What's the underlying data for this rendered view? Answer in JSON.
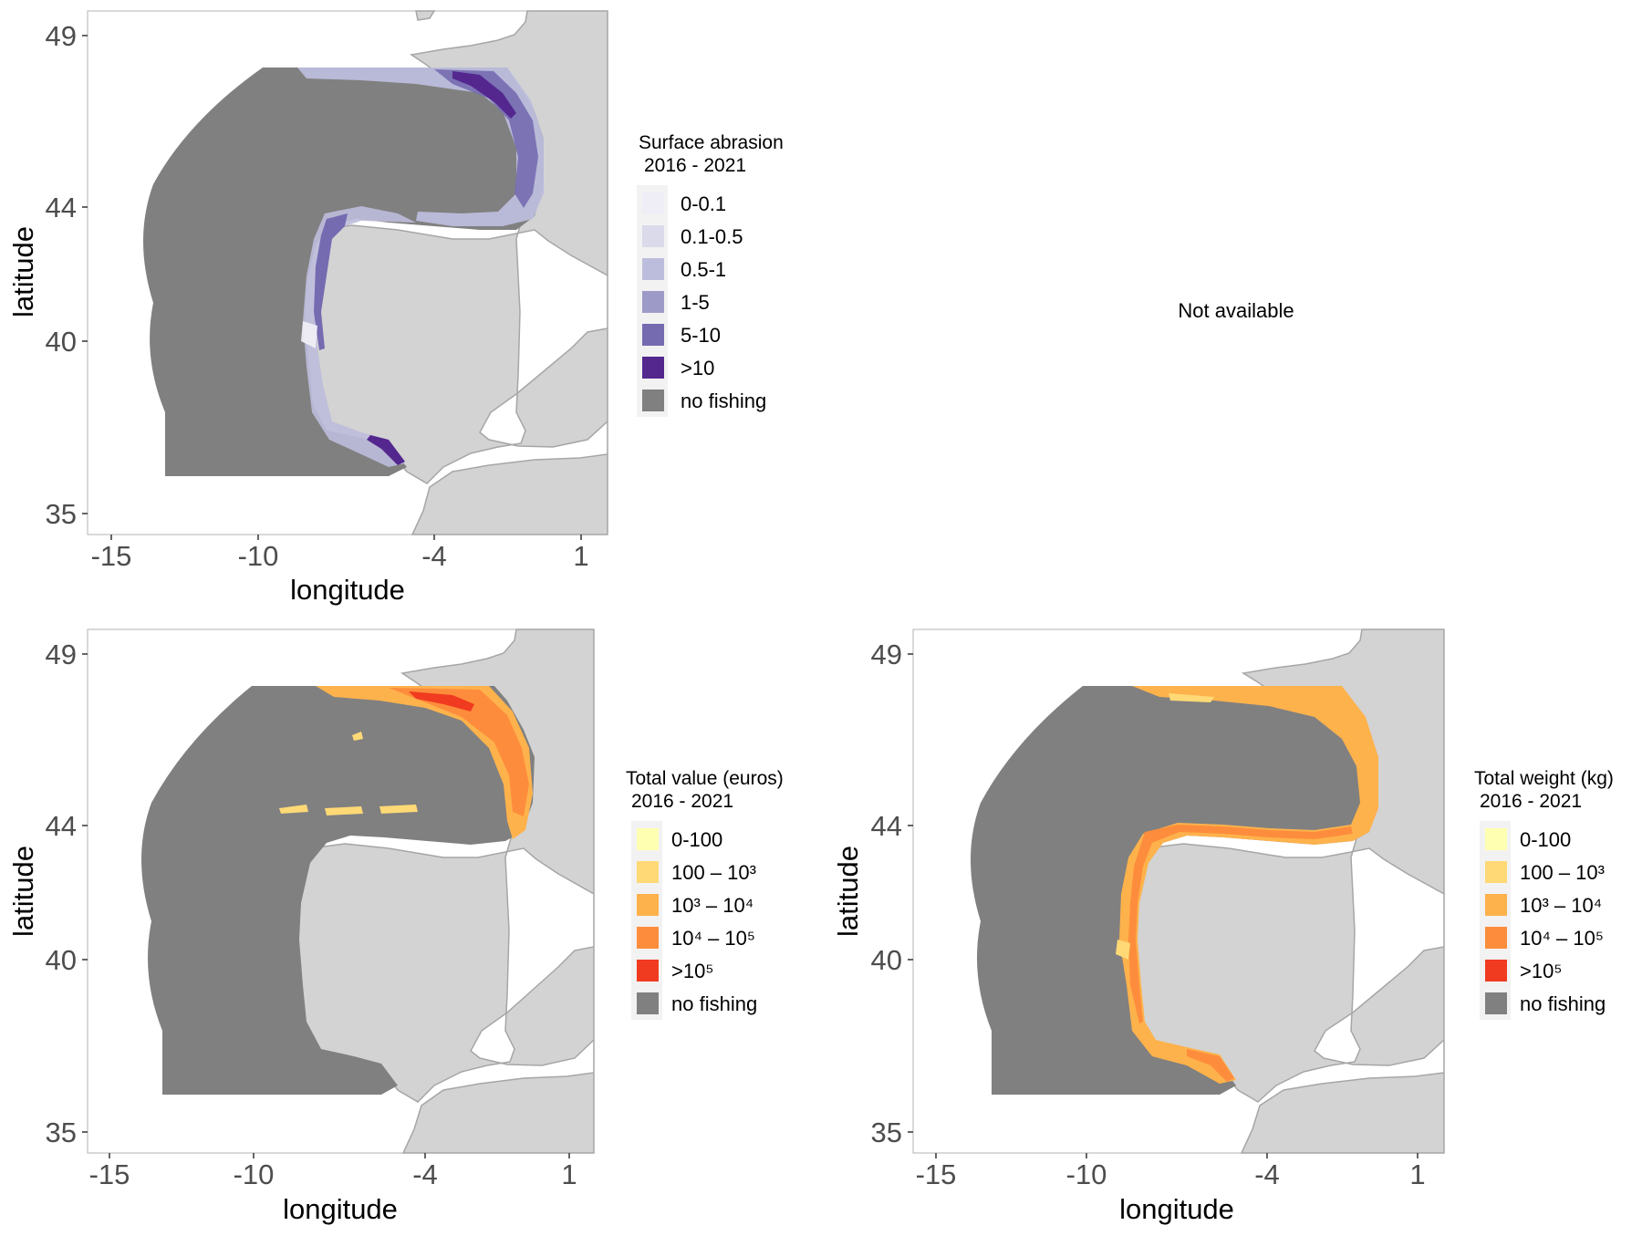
{
  "map_data": {
    "x_ticks": [
      "-15",
      "-10",
      "-4",
      "1"
    ],
    "y_ticks": [
      "49",
      "44",
      "40",
      "35"
    ],
    "xlabel": "longitude",
    "ylabel": "latitude",
    "no_fishing_color": "#808080",
    "land_color": "#d3d3d3",
    "panels": [
      {
        "name": "panel-surface-abrasion",
        "type": "map",
        "legend_title_line1": "Surface abrasion",
        "legend_title_line2": "2016 - 2021",
        "legend": [
          {
            "label": "0-0.1",
            "color": "#efedf5"
          },
          {
            "label": "0.1-0.5",
            "color": "#dadaeb"
          },
          {
            "label": "0.5-1",
            "color": "#bcbddc"
          },
          {
            "label": "1-5",
            "color": "#9e9ac8"
          },
          {
            "label": "5-10",
            "color": "#756bb1"
          },
          {
            "label": ">10",
            "color": "#54278f"
          },
          {
            "label": "no fishing",
            "color": "#808080"
          }
        ]
      },
      {
        "name": "panel-not-available",
        "type": "empty",
        "text": "Not available"
      },
      {
        "name": "panel-total-value",
        "type": "map",
        "legend_title_line1": "Total value (euros)",
        "legend_title_line2": "2016 - 2021",
        "legend": [
          {
            "label": "0-100",
            "color": "#ffffb2"
          },
          {
            "label": "100 – 10³",
            "color": "#fed976"
          },
          {
            "label": "10³ – 10⁴",
            "color": "#feb24c"
          },
          {
            "label": "10⁴ – 10⁵",
            "color": "#fd8d3c"
          },
          {
            "label": ">10⁵",
            "color": "#f03b20"
          },
          {
            "label": "no fishing",
            "color": "#808080"
          }
        ]
      },
      {
        "name": "panel-total-weight",
        "type": "map",
        "legend_title_line1": "Total weight (kg)",
        "legend_title_line2": "2016 - 2021",
        "legend": [
          {
            "label": "0-100",
            "color": "#ffffb2"
          },
          {
            "label": "100 – 10³",
            "color": "#fed976"
          },
          {
            "label": "10³ – 10⁴",
            "color": "#feb24c"
          },
          {
            "label": "10⁴ – 10⁵",
            "color": "#fd8d3c"
          },
          {
            "label": ">10⁵",
            "color": "#f03b20"
          },
          {
            "label": "no fishing",
            "color": "#808080"
          }
        ]
      }
    ]
  }
}
